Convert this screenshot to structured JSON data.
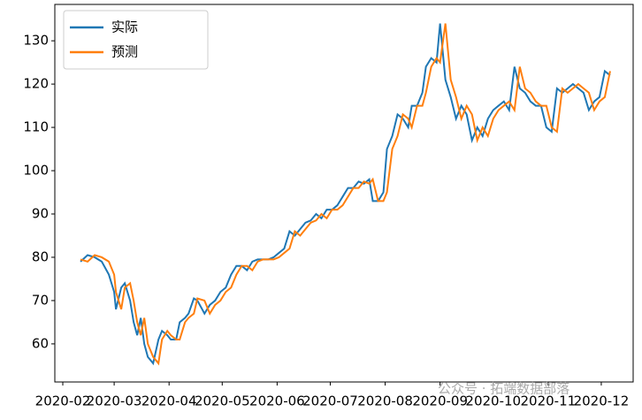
{
  "chart_data": {
    "type": "line",
    "x": [
      42,
      46,
      50,
      54,
      58,
      61,
      62,
      65,
      67,
      70,
      72,
      74,
      76,
      78,
      80,
      83,
      86,
      88,
      91,
      93,
      96,
      98,
      101,
      103,
      106,
      108,
      112,
      115,
      118,
      121,
      124,
      127,
      130,
      133,
      136,
      139,
      142,
      145,
      148,
      151,
      154,
      157,
      160,
      163,
      166,
      169,
      172,
      175,
      178,
      181,
      184,
      187,
      190,
      193,
      196,
      199,
      202,
      205,
      207,
      210,
      213,
      215,
      218,
      221,
      224,
      227,
      229,
      232,
      235,
      237,
      240,
      243,
      245,
      248,
      251,
      254,
      257,
      260,
      263,
      266,
      269,
      272,
      275,
      278,
      281,
      284,
      287,
      290,
      293,
      296,
      299,
      302,
      305,
      308,
      311,
      314,
      317,
      320,
      323,
      326,
      329,
      332,
      335,
      338,
      341
    ],
    "series": [
      {
        "name": "实际",
        "color": "#1f77b4",
        "values": [
          79,
          80.5,
          80,
          79,
          76,
          72,
          68,
          73,
          74,
          70,
          65,
          62,
          66,
          60,
          57,
          55.5,
          61,
          63,
          62,
          61,
          61,
          65,
          66,
          67,
          70.5,
          70,
          67,
          69,
          70,
          72,
          73,
          76,
          78,
          78,
          77,
          79,
          79.5,
          79.5,
          79.5,
          80,
          81,
          82,
          86,
          85,
          86.5,
          88,
          88.5,
          90,
          89,
          91,
          91,
          92,
          94,
          96,
          96,
          97.5,
          97,
          98,
          93,
          93,
          95,
          105,
          108,
          113,
          112,
          110,
          115,
          115,
          118,
          124,
          126,
          125,
          134,
          121,
          117,
          112,
          115,
          113,
          107,
          110,
          108,
          112,
          114,
          115,
          116,
          114,
          124,
          119,
          118,
          116,
          115,
          115,
          110,
          109,
          119,
          118,
          119,
          120,
          119,
          118,
          114,
          116,
          117,
          123,
          122
        ]
      },
      {
        "name": "预测",
        "color": "#ff7f0e",
        "values": [
          79.5,
          79,
          80.5,
          80,
          79,
          76,
          72,
          68,
          73,
          74,
          70,
          65,
          62,
          66,
          60,
          57,
          55.5,
          61,
          63,
          62,
          61,
          61,
          65,
          66,
          67,
          70.5,
          70,
          67,
          69,
          70,
          72,
          73,
          76,
          78,
          78,
          77,
          79,
          79.5,
          79.5,
          79.5,
          80,
          81,
          82,
          86,
          85,
          86.5,
          88,
          88.5,
          90,
          89,
          91,
          91,
          92,
          94,
          96,
          96,
          97.5,
          97,
          98,
          93,
          93,
          95,
          105,
          108,
          113,
          112,
          110,
          115,
          115,
          118,
          124,
          126,
          125,
          134,
          121,
          117,
          112,
          115,
          113,
          107,
          110,
          108,
          112,
          114,
          115,
          116,
          114,
          124,
          119,
          118,
          116,
          115,
          115,
          110,
          109,
          119,
          118,
          119,
          120,
          119,
          118,
          114,
          116,
          117,
          123
        ]
      }
    ],
    "xlim": [
      27.5,
      354
    ],
    "ylim": [
      51.2,
      138.4
    ],
    "xticks": [
      {
        "value": 32,
        "label": "2020-02"
      },
      {
        "value": 61,
        "label": "2020-03"
      },
      {
        "value": 92,
        "label": "2020-04"
      },
      {
        "value": 122,
        "label": "2020-05"
      },
      {
        "value": 153,
        "label": "2020-06"
      },
      {
        "value": 183,
        "label": "2020-07"
      },
      {
        "value": 214,
        "label": "2020-08"
      },
      {
        "value": 245,
        "label": "2020-09"
      },
      {
        "value": 275,
        "label": "2020-10"
      },
      {
        "value": 306,
        "label": "2020-11"
      },
      {
        "value": 336,
        "label": "2020-12"
      }
    ],
    "yticks": [
      60,
      70,
      80,
      90,
      100,
      110,
      120,
      130
    ],
    "legend": "upper left",
    "watermark": "公众号 · 拓端数据部落"
  }
}
